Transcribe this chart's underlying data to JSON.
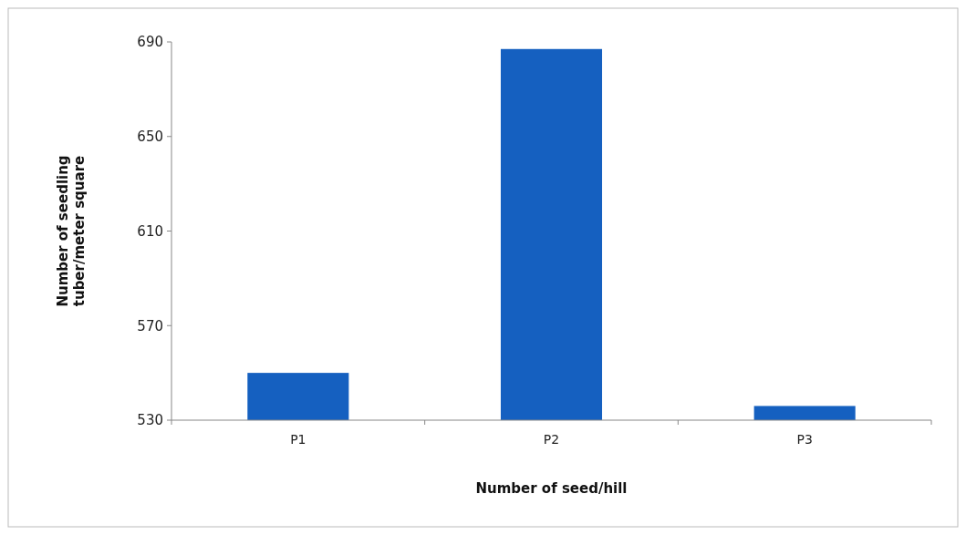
{
  "chart_data": {
    "type": "bar",
    "xlabel": "Number of seed/hill",
    "ylabel": "Number of seedling tuber/meter square",
    "categories": [
      "P1",
      "P2",
      "P3"
    ],
    "values": [
      550,
      687,
      536
    ],
    "color": "#1560c0",
    "ylim": [
      530,
      690
    ],
    "yticks": [
      530,
      570,
      610,
      650,
      690
    ],
    "grid": false
  }
}
